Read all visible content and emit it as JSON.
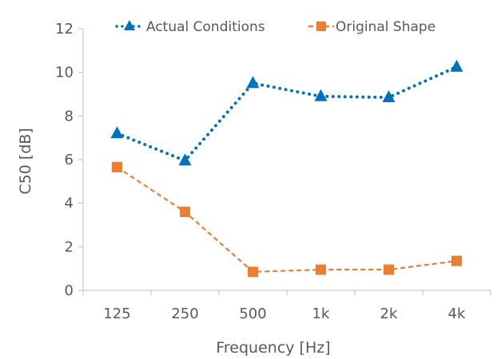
{
  "chart_data": {
    "type": "line",
    "categories": [
      "125",
      "250",
      "500",
      "1k",
      "2k",
      "4k"
    ],
    "series": [
      {
        "name": "Actual Conditions",
        "values": [
          7.2,
          5.95,
          9.5,
          8.9,
          8.85,
          10.25
        ],
        "color": "#0070C0",
        "line_style": "dotted",
        "marker": "triangle"
      },
      {
        "name": "Original Shape",
        "values": [
          5.65,
          3.6,
          0.85,
          0.95,
          0.95,
          1.35
        ],
        "color": "#ED7D31",
        "line_style": "dashed",
        "marker": "square"
      }
    ],
    "xlabel": "Frequency [Hz]",
    "ylabel": "C50 [dB]",
    "ylim": [
      0,
      12
    ],
    "yticks": [
      "0",
      "2",
      "4",
      "6",
      "8",
      "10",
      "12"
    ],
    "grid": false,
    "legend_position": "top"
  }
}
